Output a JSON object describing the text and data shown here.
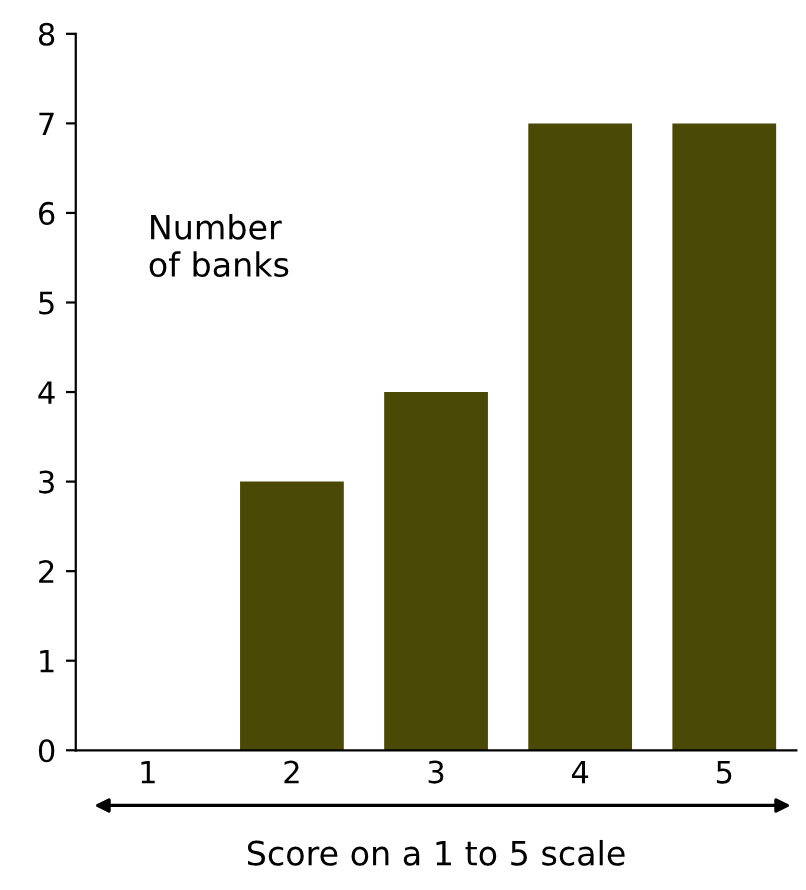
{
  "chart_data": {
    "type": "bar",
    "xlabel": "Score on a 1 to 5 scale",
    "ylabel": "Number\nof banks",
    "categories": [
      "1",
      "2",
      "3",
      "4",
      "5"
    ],
    "values": [
      0,
      3,
      4,
      7,
      7
    ],
    "color": "#4a4a06",
    "ylim": [
      0,
      8
    ],
    "yticks": [
      0,
      1,
      2,
      3,
      4,
      5,
      6,
      7,
      8
    ],
    "grid": false
  }
}
